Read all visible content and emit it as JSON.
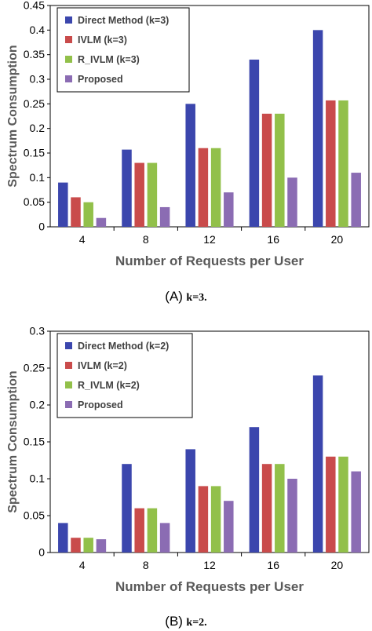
{
  "colors": {
    "Direct": "#3b46ad",
    "IVLM": "#c94b4b",
    "R_IVLM": "#92c04a",
    "Proposed": "#8b6cb3"
  },
  "chart_data": [
    {
      "type": "bar",
      "caption_letter": "(A)",
      "caption_sub": "k=3.",
      "xlabel": "Number of Requests per User",
      "ylabel": "Spectrum Consumption",
      "categories": [
        "4",
        "8",
        "12",
        "16",
        "20"
      ],
      "ylim": [
        0,
        0.45
      ],
      "yticks": [
        0,
        0.05,
        0.1,
        0.15,
        0.2,
        0.25,
        0.3,
        0.35,
        0.4,
        0.45
      ],
      "ytick_labels": [
        "0",
        "0.05",
        "0.1",
        "0.15",
        "0.2",
        "0.25",
        "0.3",
        "0.35",
        "0.4",
        "0.45"
      ],
      "grid": false,
      "legend_position": "top-left",
      "series": [
        {
          "name": "Direct Method (k=3)",
          "color_key": "Direct",
          "values": [
            0.09,
            0.157,
            0.25,
            0.34,
            0.4
          ]
        },
        {
          "name": "IVLM (k=3)",
          "color_key": "IVLM",
          "values": [
            0.06,
            0.13,
            0.16,
            0.23,
            0.257
          ]
        },
        {
          "name": "R_IVLM (k=3)",
          "color_key": "R_IVLM",
          "values": [
            0.05,
            0.13,
            0.16,
            0.23,
            0.257
          ]
        },
        {
          "name": "Proposed",
          "color_key": "Proposed",
          "values": [
            0.018,
            0.04,
            0.07,
            0.1,
            0.11
          ]
        }
      ]
    },
    {
      "type": "bar",
      "caption_letter": "(B)",
      "caption_sub": "k=2.",
      "xlabel": "Number of Requests per User",
      "ylabel": "Spectrum Consumption",
      "categories": [
        "4",
        "8",
        "12",
        "16",
        "20"
      ],
      "ylim": [
        0,
        0.3
      ],
      "yticks": [
        0,
        0.05,
        0.1,
        0.15,
        0.2,
        0.25,
        0.3
      ],
      "ytick_labels": [
        "0",
        "0.05",
        "0.1",
        "0.15",
        "0.2",
        "0.25",
        "0.3"
      ],
      "grid": false,
      "legend_position": "top-left",
      "series": [
        {
          "name": "Direct Method (k=2)",
          "color_key": "Direct",
          "values": [
            0.04,
            0.12,
            0.14,
            0.17,
            0.24
          ]
        },
        {
          "name": "IVLM (k=2)",
          "color_key": "IVLM",
          "values": [
            0.02,
            0.06,
            0.09,
            0.12,
            0.13
          ]
        },
        {
          "name": "R_IVLM (k=2)",
          "color_key": "R_IVLM",
          "values": [
            0.02,
            0.06,
            0.09,
            0.12,
            0.13
          ]
        },
        {
          "name": "Proposed",
          "color_key": "Proposed",
          "values": [
            0.018,
            0.04,
            0.07,
            0.1,
            0.11
          ]
        }
      ]
    }
  ]
}
